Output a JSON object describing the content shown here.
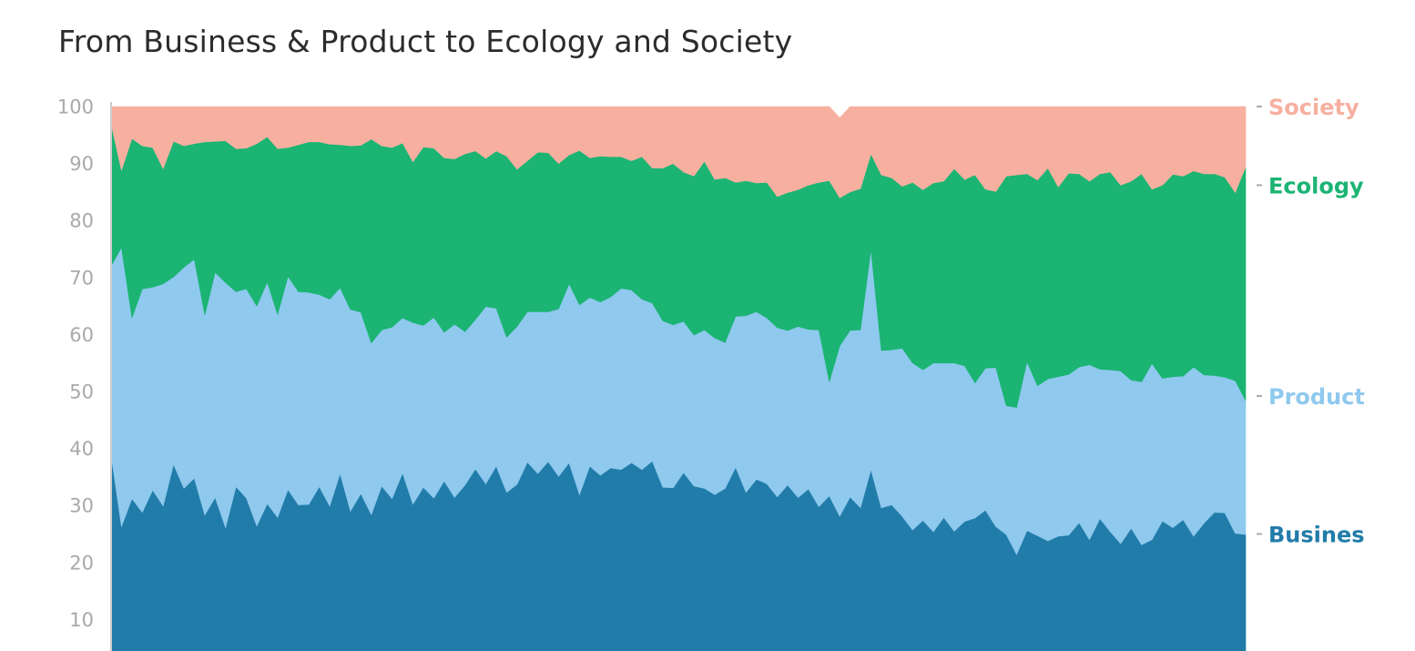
{
  "chart_data": {
    "type": "area",
    "stacked": true,
    "normalized": true,
    "title": "From Business & Product to Ecology and Society",
    "ylim": [
      0,
      100
    ],
    "yticks": [
      "100",
      "90",
      "80",
      "70",
      "60",
      "50",
      "40",
      "30",
      "20",
      "10"
    ],
    "grid": false,
    "legend": "right (inline labels at series ends)",
    "series_order": [
      "Business",
      "Product",
      "Ecology",
      "Society"
    ],
    "series_labels": {
      "Business": "Busines",
      "Product": "Product",
      "Ecology": "Ecology",
      "Society": "Society"
    },
    "colors": {
      "Business": "#217ca9",
      "Product": "#8fc9ee",
      "Ecology": "#1bb473",
      "Society": "#f7b0a0",
      "axis": "#cccccc",
      "tick_text": "#a9a9a9",
      "title": "#2b2b2b"
    },
    "series": [
      {
        "name": "Business",
        "values": [
          38.9,
          26.3,
          31.2,
          28.8,
          32.7,
          29.9,
          37.2,
          33.0,
          34.8,
          28.3,
          31.4,
          26.1,
          33.3,
          31.3,
          26.4,
          30.3,
          27.9,
          32.8,
          30.1,
          30.2,
          33.3,
          29.9,
          35.6,
          29.0,
          32.1,
          28.4,
          33.4,
          31.2,
          35.7,
          30.2,
          33.2,
          31.3,
          34.3,
          31.4,
          33.6,
          36.4,
          33.8,
          36.9,
          32.3,
          33.7,
          37.6,
          35.6,
          37.7,
          35.1,
          37.5,
          31.9,
          36.9,
          35.3,
          36.6,
          36.3,
          37.5,
          36.3,
          37.8,
          33.2,
          33.1,
          35.8,
          33.4,
          33.0,
          31.9,
          33.0,
          36.7,
          32.3,
          34.6,
          33.8,
          31.5,
          33.6,
          31.4,
          32.9,
          29.8,
          31.7,
          28.1,
          31.5,
          29.6,
          36.3,
          29.6,
          30.1,
          28.1,
          25.7,
          27.4,
          25.4,
          27.9,
          25.5,
          27.2,
          27.8,
          29.2,
          26.3,
          24.9,
          21.4,
          25.6,
          24.7,
          23.8,
          24.6,
          24.8,
          27.0,
          24.0,
          27.7,
          25.4,
          23.3,
          26.0,
          23.1,
          24.0,
          27.3,
          26.1,
          27.5,
          24.6,
          26.9,
          28.8,
          28.7,
          25.1,
          24.9
        ]
      },
      {
        "name": "Product",
        "values": [
          33.1,
          49.0,
          31.7,
          39.2,
          35.6,
          39.0,
          32.9,
          38.8,
          38.4,
          35.1,
          39.5,
          43.0,
          34.2,
          36.7,
          38.6,
          38.9,
          35.6,
          37.4,
          37.4,
          37.2,
          33.7,
          36.3,
          32.6,
          35.4,
          31.8,
          30.1,
          27.4,
          30.1,
          27.2,
          31.9,
          28.4,
          31.7,
          26.1,
          30.4,
          26.9,
          26.2,
          31.1,
          27.7,
          27.2,
          27.7,
          26.4,
          28.4,
          26.3,
          29.4,
          31.4,
          33.3,
          29.6,
          30.4,
          30.0,
          31.8,
          30.3,
          29.9,
          27.7,
          29.2,
          28.6,
          26.5,
          26.5,
          27.8,
          27.5,
          25.6,
          26.5,
          31.0,
          29.4,
          29.1,
          29.7,
          27.1,
          30.0,
          28.0,
          31.0,
          20.0,
          29.9,
          29.2,
          31.2,
          38.6,
          27.6,
          27.2,
          29.5,
          29.3,
          26.4,
          29.6,
          27.1,
          29.5,
          27.3,
          23.7,
          24.9,
          27.9,
          22.6,
          25.8,
          29.6,
          26.3,
          28.4,
          28.0,
          28.2,
          27.3,
          30.7,
          26.2,
          28.4,
          30.3,
          26.0,
          28.6,
          30.9,
          25.0,
          26.5,
          25.2,
          29.7,
          26.0,
          24.0,
          23.8,
          26.8,
          23.5
        ]
      },
      {
        "name": "Ecology",
        "values": [
          25.0,
          13.5,
          31.5,
          25.1,
          24.5,
          20.2,
          23.8,
          21.3,
          20.3,
          30.4,
          23.0,
          24.9,
          25.1,
          24.7,
          28.5,
          25.5,
          29.1,
          22.6,
          25.8,
          26.4,
          26.8,
          27.2,
          25.1,
          28.7,
          29.3,
          35.8,
          32.3,
          31.5,
          30.7,
          28.2,
          31.3,
          29.7,
          30.6,
          29.0,
          31.2,
          29.6,
          26.0,
          27.6,
          31.8,
          27.6,
          26.5,
          28.0,
          27.9,
          25.5,
          22.6,
          27.1,
          24.5,
          25.6,
          24.6,
          23.1,
          22.7,
          25.0,
          23.7,
          26.8,
          28.3,
          26.2,
          27.9,
          29.6,
          27.8,
          28.9,
          23.5,
          23.7,
          22.6,
          23.8,
          23.0,
          24.2,
          24.0,
          25.3,
          25.9,
          35.3,
          26.0,
          24.3,
          24.8,
          16.8,
          30.8,
          30.2,
          28.4,
          31.7,
          31.6,
          31.6,
          31.9,
          34.1,
          32.7,
          36.5,
          31.4,
          30.9,
          40.3,
          40.8,
          33.0,
          36.1,
          37.0,
          33.3,
          35.3,
          33.9,
          32.2,
          34.3,
          34.7,
          32.6,
          34.9,
          36.5,
          30.6,
          33.9,
          35.5,
          35.1,
          34.4,
          35.3,
          35.4,
          35.1,
          33.0,
          41.0
        ]
      },
      {
        "name": "Society",
        "values": [
          3.0,
          11.2,
          5.6,
          6.9,
          7.2,
          10.9,
          6.1,
          6.9,
          6.5,
          6.2,
          6.1,
          6.0,
          7.4,
          7.3,
          6.5,
          5.3,
          7.4,
          7.2,
          6.7,
          6.2,
          6.2,
          6.6,
          6.7,
          6.9,
          6.8,
          5.7,
          6.9,
          7.2,
          6.4,
          9.7,
          7.1,
          7.3,
          9.0,
          9.2,
          8.3,
          7.8,
          9.1,
          7.8,
          8.7,
          11.0,
          9.5,
          8.0,
          8.1,
          10.0,
          8.5,
          7.7,
          9.0,
          8.7,
          8.8,
          8.8,
          9.5,
          8.8,
          10.8,
          10.8,
          10.0,
          11.5,
          12.2,
          9.6,
          12.8,
          12.5,
          13.3,
          13.0,
          13.4,
          13.3,
          15.8,
          15.1,
          14.6,
          13.8,
          13.3,
          13.0,
          14.0,
          15.0,
          14.4,
          8.3,
          12.0,
          12.5,
          14.0,
          13.3,
          14.6,
          13.4,
          13.1,
          10.9,
          12.8,
          12.0,
          14.5,
          14.9,
          12.2,
          12.0,
          11.8,
          12.9,
          10.8,
          14.1,
          11.7,
          11.8,
          13.1,
          11.8,
          11.5,
          13.8,
          13.1,
          11.8,
          14.5,
          13.8,
          11.9,
          12.2,
          11.3,
          11.8,
          11.8,
          12.4,
          15.1,
          10.6
        ]
      }
    ]
  }
}
